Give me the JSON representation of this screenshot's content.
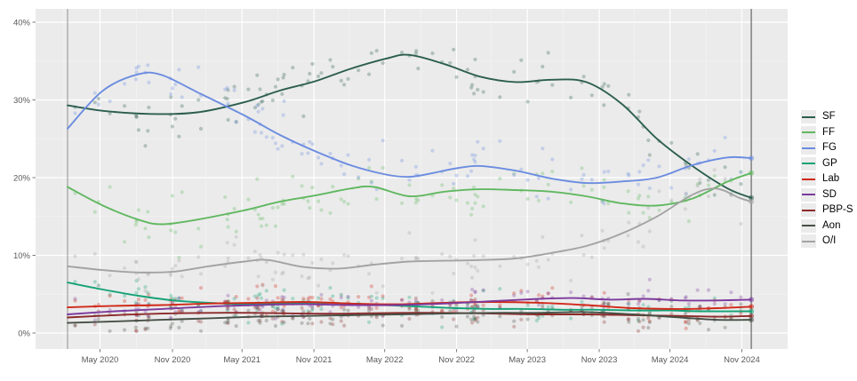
{
  "chart_data": {
    "type": "scatter+line",
    "title": "",
    "xlabel": "",
    "ylabel": "",
    "x_unit": "months since February 2020 general election",
    "ylim": [
      -2,
      42
    ],
    "grid": true,
    "legend_position": "right",
    "panel_background": "#ebebeb",
    "grid_color": "#ffffff",
    "tick_text_color": "#595959",
    "y_ticks": [
      {
        "label": "40%",
        "value": 40
      },
      {
        "label": "30%",
        "value": 30
      },
      {
        "label": "20%",
        "value": 20
      },
      {
        "label": "10%",
        "value": 10
      },
      {
        "label": "0%",
        "value": 0
      }
    ],
    "x_ticks": [
      {
        "label": "May 2020",
        "m": 2.75
      },
      {
        "label": "Nov 2020",
        "m": 8.9
      },
      {
        "label": "May 2021",
        "m": 14.8
      },
      {
        "label": "Nov 2021",
        "m": 20.9
      },
      {
        "label": "May 2022",
        "m": 26.9
      },
      {
        "label": "Nov 2022",
        "m": 33.0
      },
      {
        "label": "May 2023",
        "m": 39.0
      },
      {
        "label": "Nov 2023",
        "m": 45.1
      },
      {
        "label": "May 2024",
        "m": 51.1
      },
      {
        "label": "Nov 2024",
        "m": 57.2
      }
    ],
    "event_lines": [
      {
        "name": "2020-general-election",
        "m": 0,
        "color": "#9a9a9a"
      },
      {
        "name": "2024-general-election",
        "m": 58,
        "color": "#5a5a5a"
      }
    ],
    "series": [
      {
        "name": "SF",
        "color": "#2c5e4f",
        "points": [
          [
            0,
            29.3
          ],
          [
            3,
            28.6
          ],
          [
            7,
            28.2
          ],
          [
            11,
            28.4
          ],
          [
            15,
            29.7
          ],
          [
            18,
            31.2
          ],
          [
            21,
            32.4
          ],
          [
            24,
            34.0
          ],
          [
            27,
            35.3
          ],
          [
            29,
            35.8
          ],
          [
            32,
            34.6
          ],
          [
            35,
            33.0
          ],
          [
            38,
            32.3
          ],
          [
            41,
            32.6
          ],
          [
            44,
            32.3
          ],
          [
            47,
            29.5
          ],
          [
            50,
            25.0
          ],
          [
            53,
            21.5
          ],
          [
            56,
            18.6
          ],
          [
            58,
            17.4
          ]
        ]
      },
      {
        "name": "FF",
        "color": "#61b861",
        "points": [
          [
            0,
            18.8
          ],
          [
            3,
            16.4
          ],
          [
            6,
            14.6
          ],
          [
            8,
            14.0
          ],
          [
            11,
            14.6
          ],
          [
            15,
            15.8
          ],
          [
            18,
            16.9
          ],
          [
            21,
            17.7
          ],
          [
            24,
            18.6
          ],
          [
            26,
            18.8
          ],
          [
            29,
            17.6
          ],
          [
            32,
            18.2
          ],
          [
            35,
            18.5
          ],
          [
            38,
            18.4
          ],
          [
            41,
            18.2
          ],
          [
            44,
            17.6
          ],
          [
            47,
            16.7
          ],
          [
            50,
            16.4
          ],
          [
            53,
            17.3
          ],
          [
            56,
            19.5
          ],
          [
            58,
            20.6
          ]
        ]
      },
      {
        "name": "FG",
        "color": "#6b8ce0",
        "points": [
          [
            0,
            26.3
          ],
          [
            3,
            31.2
          ],
          [
            6,
            33.3
          ],
          [
            8,
            33.2
          ],
          [
            11,
            31.0
          ],
          [
            15,
            28.0
          ],
          [
            18,
            25.5
          ],
          [
            21,
            23.4
          ],
          [
            24,
            21.6
          ],
          [
            27,
            20.4
          ],
          [
            29,
            20.1
          ],
          [
            31,
            20.6
          ],
          [
            33,
            21.2
          ],
          [
            35,
            21.5
          ],
          [
            38,
            20.9
          ],
          [
            41,
            19.9
          ],
          [
            44,
            19.3
          ],
          [
            47,
            19.5
          ],
          [
            50,
            20.0
          ],
          [
            53,
            21.6
          ],
          [
            56,
            22.6
          ],
          [
            58,
            22.5
          ]
        ]
      },
      {
        "name": "GP",
        "color": "#14a276",
        "points": [
          [
            0,
            6.5
          ],
          [
            3,
            5.6
          ],
          [
            6,
            4.8
          ],
          [
            9,
            4.2
          ],
          [
            12,
            3.9
          ],
          [
            15,
            3.7
          ],
          [
            18,
            3.8
          ],
          [
            21,
            3.9
          ],
          [
            24,
            3.8
          ],
          [
            27,
            3.6
          ],
          [
            30,
            3.4
          ],
          [
            33,
            3.2
          ],
          [
            36,
            3.1
          ],
          [
            39,
            3.1
          ],
          [
            42,
            3.0
          ],
          [
            45,
            3.0
          ],
          [
            48,
            2.9
          ],
          [
            51,
            2.9
          ],
          [
            54,
            2.8
          ],
          [
            58,
            2.8
          ]
        ]
      },
      {
        "name": "Lab",
        "color": "#d02818",
        "points": [
          [
            0,
            3.3
          ],
          [
            4,
            3.5
          ],
          [
            8,
            3.6
          ],
          [
            12,
            3.8
          ],
          [
            16,
            3.9
          ],
          [
            20,
            4.0
          ],
          [
            24,
            3.8
          ],
          [
            28,
            3.7
          ],
          [
            32,
            3.9
          ],
          [
            36,
            4.0
          ],
          [
            40,
            3.9
          ],
          [
            44,
            3.6
          ],
          [
            48,
            3.2
          ],
          [
            52,
            3.1
          ],
          [
            55,
            3.2
          ],
          [
            58,
            3.4
          ]
        ]
      },
      {
        "name": "SD",
        "color": "#7c3a9d",
        "points": [
          [
            0,
            2.4
          ],
          [
            4,
            2.8
          ],
          [
            8,
            3.1
          ],
          [
            12,
            3.4
          ],
          [
            16,
            3.6
          ],
          [
            20,
            3.7
          ],
          [
            24,
            3.6
          ],
          [
            28,
            3.6
          ],
          [
            32,
            3.8
          ],
          [
            36,
            4.1
          ],
          [
            40,
            4.4
          ],
          [
            43,
            4.5
          ],
          [
            46,
            4.3
          ],
          [
            49,
            4.4
          ],
          [
            52,
            4.2
          ],
          [
            55,
            4.2
          ],
          [
            58,
            4.3
          ]
        ]
      },
      {
        "name": "PBP-S",
        "color": "#8c2a2a",
        "points": [
          [
            0,
            2.0
          ],
          [
            4,
            2.3
          ],
          [
            8,
            2.5
          ],
          [
            12,
            2.6
          ],
          [
            16,
            2.6
          ],
          [
            20,
            2.5
          ],
          [
            24,
            2.5
          ],
          [
            28,
            2.6
          ],
          [
            32,
            2.6
          ],
          [
            36,
            2.5
          ],
          [
            40,
            2.4
          ],
          [
            44,
            2.4
          ],
          [
            48,
            2.3
          ],
          [
            52,
            2.2
          ],
          [
            55,
            2.1
          ],
          [
            58,
            2.2
          ]
        ]
      },
      {
        "name": "Aon",
        "color": "#465046",
        "points": [
          [
            0,
            1.3
          ],
          [
            4,
            1.5
          ],
          [
            8,
            1.7
          ],
          [
            12,
            1.9
          ],
          [
            16,
            2.1
          ],
          [
            20,
            2.2
          ],
          [
            24,
            2.3
          ],
          [
            28,
            2.4
          ],
          [
            32,
            2.5
          ],
          [
            36,
            2.6
          ],
          [
            40,
            2.6
          ],
          [
            44,
            2.7
          ],
          [
            48,
            2.4
          ],
          [
            52,
            2.0
          ],
          [
            55,
            1.7
          ],
          [
            58,
            1.7
          ]
        ]
      },
      {
        "name": "O/I",
        "color": "#a3a3a3",
        "points": [
          [
            0,
            8.6
          ],
          [
            3,
            8.1
          ],
          [
            6,
            7.8
          ],
          [
            9,
            7.9
          ],
          [
            12,
            8.6
          ],
          [
            15,
            9.2
          ],
          [
            17,
            9.4
          ],
          [
            20,
            8.5
          ],
          [
            23,
            8.3
          ],
          [
            26,
            8.8
          ],
          [
            29,
            9.2
          ],
          [
            32,
            9.3
          ],
          [
            35,
            9.4
          ],
          [
            38,
            9.6
          ],
          [
            41,
            10.3
          ],
          [
            44,
            11.2
          ],
          [
            47,
            12.8
          ],
          [
            50,
            15.0
          ],
          [
            53,
            17.8
          ],
          [
            55,
            18.6
          ],
          [
            57,
            17.4
          ],
          [
            58,
            16.9
          ]
        ]
      }
    ],
    "scatter": {
      "description": "individual poll results jittered around each party trend line",
      "poll_count": 112,
      "dot_opacity": 0.3
    }
  },
  "legend": {
    "items": [
      "SF",
      "FF",
      "FG",
      "GP",
      "Lab",
      "SD",
      "PBP-S",
      "Aon",
      "O/I"
    ]
  }
}
